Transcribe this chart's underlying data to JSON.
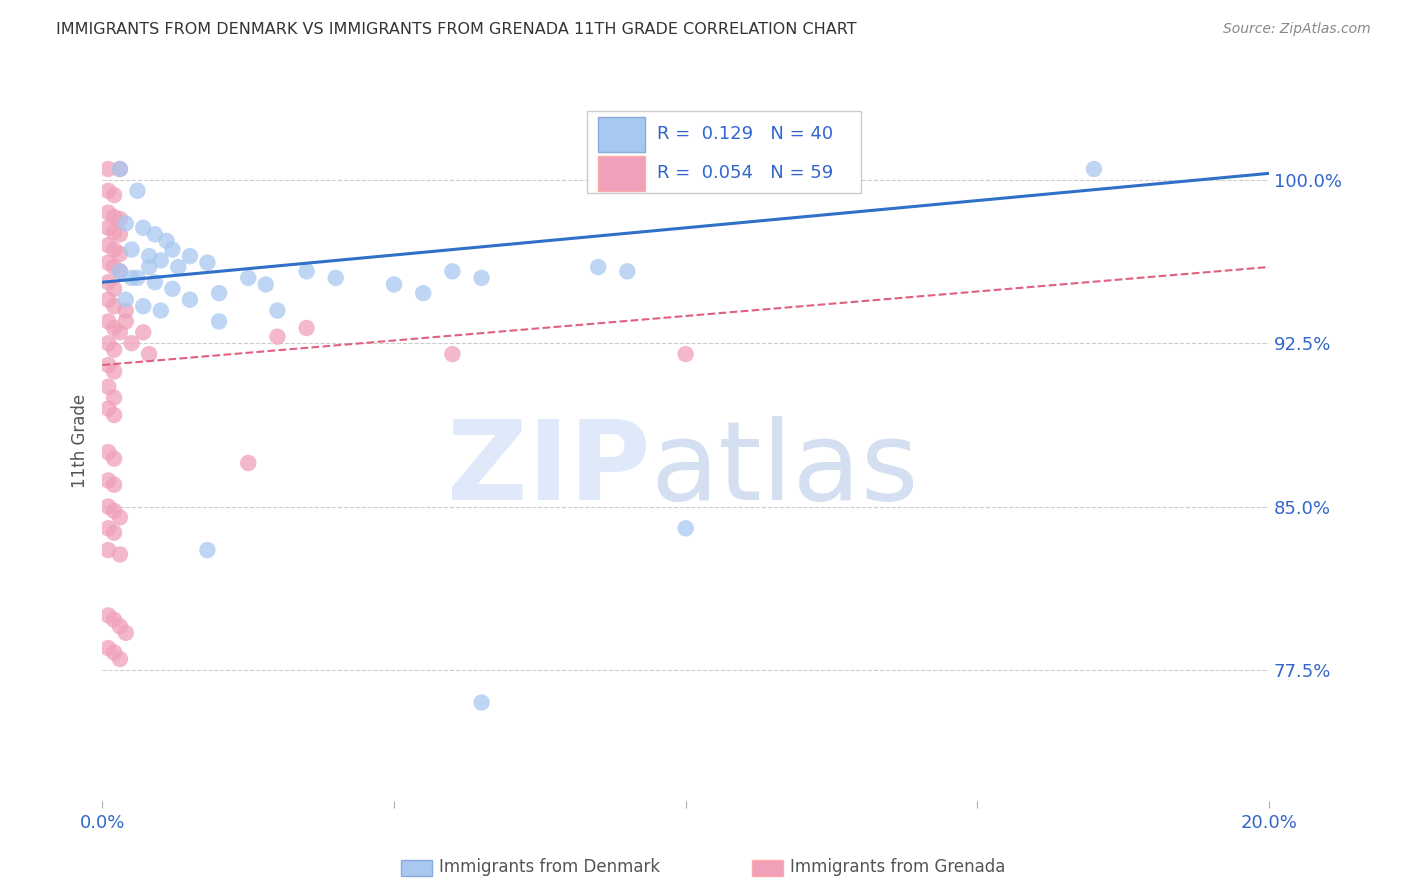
{
  "title": "IMMIGRANTS FROM DENMARK VS IMMIGRANTS FROM GRENADA 11TH GRADE CORRELATION CHART",
  "source": "Source: ZipAtlas.com",
  "ylabel": "11th Grade",
  "ytick_labels": [
    "77.5%",
    "85.0%",
    "92.5%",
    "100.0%"
  ],
  "ytick_values": [
    0.775,
    0.85,
    0.925,
    1.0
  ],
  "xlim": [
    0.0,
    0.2
  ],
  "ylim": [
    0.715,
    1.045
  ],
  "denmark_scatter": [
    [
      0.003,
      1.005
    ],
    [
      0.006,
      0.995
    ],
    [
      0.004,
      0.98
    ],
    [
      0.007,
      0.978
    ],
    [
      0.009,
      0.975
    ],
    [
      0.011,
      0.972
    ],
    [
      0.005,
      0.968
    ],
    [
      0.008,
      0.965
    ],
    [
      0.01,
      0.963
    ],
    [
      0.013,
      0.96
    ],
    [
      0.003,
      0.958
    ],
    [
      0.006,
      0.955
    ],
    [
      0.009,
      0.953
    ],
    [
      0.012,
      0.95
    ],
    [
      0.015,
      0.965
    ],
    [
      0.018,
      0.962
    ],
    [
      0.004,
      0.945
    ],
    [
      0.007,
      0.942
    ],
    [
      0.01,
      0.94
    ],
    [
      0.015,
      0.945
    ],
    [
      0.02,
      0.948
    ],
    [
      0.025,
      0.955
    ],
    [
      0.028,
      0.952
    ],
    [
      0.035,
      0.958
    ],
    [
      0.04,
      0.955
    ],
    [
      0.05,
      0.952
    ],
    [
      0.055,
      0.948
    ],
    [
      0.06,
      0.958
    ],
    [
      0.065,
      0.955
    ],
    [
      0.085,
      0.96
    ],
    [
      0.09,
      0.958
    ],
    [
      0.17,
      1.005
    ],
    [
      0.02,
      0.935
    ],
    [
      0.03,
      0.94
    ],
    [
      0.018,
      0.83
    ],
    [
      0.1,
      0.84
    ],
    [
      0.065,
      0.76
    ],
    [
      0.005,
      0.955
    ],
    [
      0.008,
      0.96
    ],
    [
      0.012,
      0.968
    ]
  ],
  "grenada_scatter": [
    [
      0.001,
      1.005
    ],
    [
      0.003,
      1.005
    ],
    [
      0.001,
      0.995
    ],
    [
      0.002,
      0.993
    ],
    [
      0.001,
      0.985
    ],
    [
      0.002,
      0.983
    ],
    [
      0.003,
      0.982
    ],
    [
      0.001,
      0.978
    ],
    [
      0.002,
      0.976
    ],
    [
      0.003,
      0.975
    ],
    [
      0.001,
      0.97
    ],
    [
      0.002,
      0.968
    ],
    [
      0.003,
      0.966
    ],
    [
      0.001,
      0.962
    ],
    [
      0.002,
      0.96
    ],
    [
      0.003,
      0.958
    ],
    [
      0.001,
      0.953
    ],
    [
      0.002,
      0.95
    ],
    [
      0.001,
      0.945
    ],
    [
      0.002,
      0.942
    ],
    [
      0.004,
      0.94
    ],
    [
      0.001,
      0.935
    ],
    [
      0.002,
      0.932
    ],
    [
      0.003,
      0.93
    ],
    [
      0.001,
      0.925
    ],
    [
      0.002,
      0.922
    ],
    [
      0.001,
      0.915
    ],
    [
      0.002,
      0.912
    ],
    [
      0.001,
      0.905
    ],
    [
      0.002,
      0.9
    ],
    [
      0.001,
      0.895
    ],
    [
      0.002,
      0.892
    ],
    [
      0.004,
      0.935
    ],
    [
      0.007,
      0.93
    ],
    [
      0.005,
      0.925
    ],
    [
      0.008,
      0.92
    ],
    [
      0.03,
      0.928
    ],
    [
      0.035,
      0.932
    ],
    [
      0.06,
      0.92
    ],
    [
      0.1,
      0.92
    ],
    [
      0.001,
      0.875
    ],
    [
      0.002,
      0.872
    ],
    [
      0.001,
      0.862
    ],
    [
      0.002,
      0.86
    ],
    [
      0.001,
      0.85
    ],
    [
      0.002,
      0.848
    ],
    [
      0.003,
      0.845
    ],
    [
      0.001,
      0.84
    ],
    [
      0.002,
      0.838
    ],
    [
      0.001,
      0.83
    ],
    [
      0.003,
      0.828
    ],
    [
      0.025,
      0.87
    ],
    [
      0.001,
      0.8
    ],
    [
      0.002,
      0.798
    ],
    [
      0.003,
      0.795
    ],
    [
      0.004,
      0.792
    ],
    [
      0.001,
      0.785
    ],
    [
      0.002,
      0.783
    ],
    [
      0.003,
      0.78
    ]
  ],
  "denmark_color": "#A8C8F0",
  "grenada_color": "#F0A0B8",
  "denmark_line_color": "#3070C8",
  "grenada_line_color": "#E06080",
  "denmark_trendline": [
    [
      0.0,
      0.953
    ],
    [
      0.2,
      1.003
    ]
  ],
  "grenada_trendline": [
    [
      0.0,
      0.915
    ],
    [
      0.2,
      0.96
    ]
  ],
  "title_color": "#333333",
  "axis_tick_color": "#3366CC",
  "ylabel_color": "#555555",
  "source_color": "#888888",
  "grid_color": "#CCCCCC",
  "legend_box_color": "#DDDDDD",
  "legend_text_color": "#3366CC"
}
